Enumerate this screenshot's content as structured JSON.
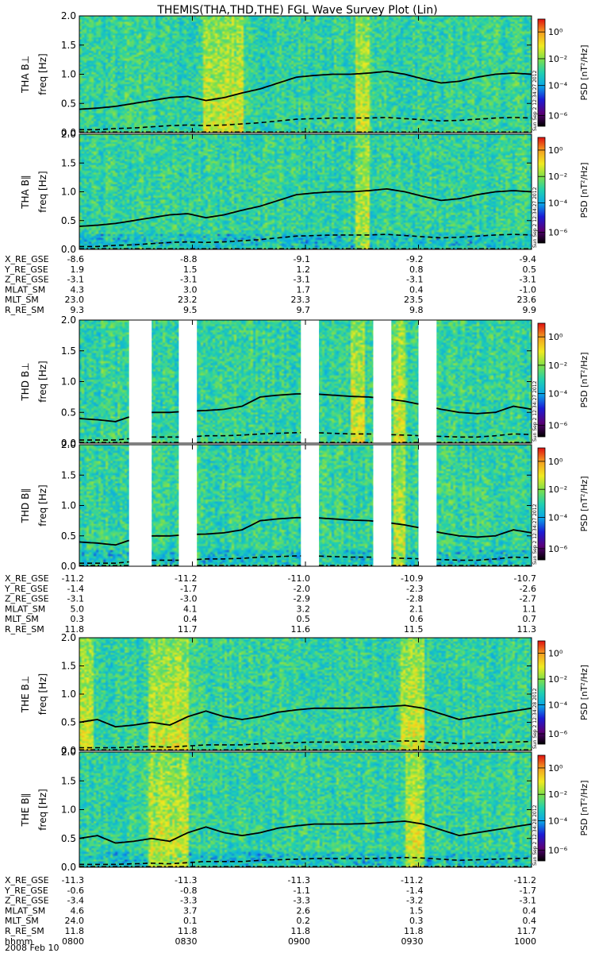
{
  "title": "THEMIS(THA,THD,THE) FGL Wave Survey Plot (Lin)",
  "colorbar": {
    "label": "PSD [nT²/Hz]",
    "ticks": [
      "10⁰",
      "10⁻²",
      "10⁻⁴",
      "10⁻⁶"
    ],
    "colors": [
      "#000000",
      "#5a007a",
      "#1b1bd6",
      "#0aa7e8",
      "#20d0b0",
      "#7de04a",
      "#f0ea20",
      "#f5a020",
      "#e01010"
    ]
  },
  "chart_data": {
    "type": "heatmap",
    "x_axis": {
      "label": "hhmm",
      "ticks": [
        "0800",
        "0830",
        "0900",
        "0930",
        "1000"
      ],
      "date": "2008 Feb 10"
    },
    "y_axis": {
      "label": "freq [Hz]",
      "range": [
        0,
        2.0
      ],
      "ticks": [
        "0.0",
        "0.5",
        "1.0",
        "1.5",
        "2.0"
      ]
    },
    "panels": [
      {
        "probe": "THA",
        "label": "THA B⊥",
        "component": "perp",
        "stamp": "Sun Sep 2 12:34:27 2012",
        "fce_line": [
          0.4,
          0.42,
          0.45,
          0.5,
          0.55,
          0.6,
          0.62,
          0.55,
          0.6,
          0.68,
          0.75,
          0.85,
          0.95,
          0.98,
          1.0,
          1.0,
          1.02,
          1.05,
          1.0,
          0.92,
          0.85,
          0.88,
          0.95,
          1.0,
          1.02,
          1.0
        ],
        "half_line": [
          0.05,
          0.05,
          0.07,
          0.08,
          0.1,
          0.12,
          0.13,
          0.12,
          0.13,
          0.15,
          0.17,
          0.2,
          0.23,
          0.24,
          0.25,
          0.25,
          0.25,
          0.26,
          0.24,
          0.22,
          0.2,
          0.21,
          0.23,
          0.25,
          0.26,
          0.25
        ],
        "dotdash_line": [
          0.01,
          0.01,
          0.01,
          0.01,
          0.01,
          0.01,
          0.01,
          0.01,
          0.01,
          0.01,
          0.01,
          0.01,
          0.01,
          0.01,
          0.01,
          0.01,
          0.01,
          0.01,
          0.01,
          0.01,
          0.01,
          0.01,
          0.01,
          0.01,
          0.01,
          0.01
        ],
        "gaps": [],
        "bright": [
          [
            0.27,
            0.36
          ],
          [
            0.61,
            0.64
          ]
        ]
      },
      {
        "probe": "THA",
        "label": "THA B∥",
        "component": "par",
        "stamp": "Sun Sep 2 12:34:27 2012",
        "fce_line": [
          0.4,
          0.42,
          0.45,
          0.5,
          0.55,
          0.6,
          0.62,
          0.55,
          0.6,
          0.68,
          0.75,
          0.85,
          0.95,
          0.98,
          1.0,
          1.0,
          1.02,
          1.05,
          1.0,
          0.92,
          0.85,
          0.88,
          0.95,
          1.0,
          1.02,
          1.0
        ],
        "half_line": [
          0.05,
          0.05,
          0.07,
          0.08,
          0.1,
          0.12,
          0.13,
          0.12,
          0.13,
          0.15,
          0.17,
          0.2,
          0.23,
          0.24,
          0.25,
          0.25,
          0.25,
          0.26,
          0.24,
          0.22,
          0.2,
          0.21,
          0.23,
          0.25,
          0.26,
          0.25
        ],
        "dotdash_line": [
          0.01,
          0.01,
          0.01,
          0.01,
          0.01,
          0.01,
          0.01,
          0.01,
          0.01,
          0.01,
          0.01,
          0.01,
          0.01,
          0.01,
          0.01,
          0.01,
          0.01,
          0.01,
          0.01,
          0.01,
          0.01,
          0.01,
          0.01,
          0.01,
          0.01,
          0.01
        ],
        "gaps": [],
        "bright": [
          [
            0.61,
            0.64
          ]
        ]
      },
      {
        "probe": "THD",
        "label": "THD B⊥",
        "component": "perp",
        "stamp": "Sun Sep 2 12:34:27 2012",
        "fce_line": [
          0.4,
          0.38,
          0.35,
          0.45,
          0.5,
          0.5,
          0.52,
          0.53,
          0.55,
          0.6,
          0.75,
          0.78,
          0.8,
          0.8,
          0.78,
          0.76,
          0.75,
          0.72,
          0.68,
          0.62,
          0.55,
          0.5,
          0.48,
          0.5,
          0.6,
          0.55
        ],
        "half_line": [
          0.05,
          0.05,
          0.05,
          0.08,
          0.1,
          0.1,
          0.1,
          0.12,
          0.12,
          0.13,
          0.15,
          0.16,
          0.17,
          0.17,
          0.16,
          0.15,
          0.15,
          0.14,
          0.13,
          0.12,
          0.11,
          0.1,
          0.1,
          0.12,
          0.15,
          0.14
        ],
        "dotdash_line": [
          0.01,
          0.01,
          0.01,
          0.01,
          0.01,
          0.01,
          0.01,
          0.01,
          0.01,
          0.01,
          0.01,
          0.01,
          0.01,
          0.01,
          0.01,
          0.01,
          0.01,
          0.01,
          0.01,
          0.01,
          0.01,
          0.01,
          0.01,
          0.01,
          0.01,
          0.01
        ],
        "gaps": [
          [
            0.11,
            0.16
          ],
          [
            0.22,
            0.26
          ],
          [
            0.49,
            0.53
          ],
          [
            0.65,
            0.69
          ],
          [
            0.75,
            0.79
          ]
        ],
        "bright": [
          [
            0.6,
            0.63
          ],
          [
            0.69,
            0.72
          ]
        ]
      },
      {
        "probe": "THD",
        "label": "THD B∥",
        "component": "par",
        "stamp": "Sun Sep 2 12:34:27 2012",
        "fce_line": [
          0.4,
          0.38,
          0.35,
          0.45,
          0.5,
          0.5,
          0.52,
          0.53,
          0.55,
          0.6,
          0.75,
          0.78,
          0.8,
          0.8,
          0.78,
          0.76,
          0.75,
          0.72,
          0.68,
          0.62,
          0.55,
          0.5,
          0.48,
          0.5,
          0.6,
          0.55
        ],
        "half_line": [
          0.05,
          0.05,
          0.05,
          0.08,
          0.1,
          0.1,
          0.1,
          0.12,
          0.12,
          0.13,
          0.15,
          0.16,
          0.17,
          0.17,
          0.16,
          0.15,
          0.15,
          0.14,
          0.13,
          0.12,
          0.11,
          0.1,
          0.1,
          0.12,
          0.15,
          0.14
        ],
        "dotdash_line": [
          0.01,
          0.01,
          0.01,
          0.01,
          0.01,
          0.01,
          0.01,
          0.01,
          0.01,
          0.01,
          0.01,
          0.01,
          0.01,
          0.01,
          0.01,
          0.01,
          0.01,
          0.01,
          0.01,
          0.01,
          0.01,
          0.01,
          0.01,
          0.01,
          0.01,
          0.01
        ],
        "gaps": [
          [
            0.11,
            0.16
          ],
          [
            0.22,
            0.26
          ],
          [
            0.49,
            0.53
          ],
          [
            0.65,
            0.69
          ],
          [
            0.75,
            0.79
          ]
        ],
        "bright": [
          [
            0.69,
            0.72
          ]
        ]
      },
      {
        "probe": "THE",
        "label": "THE B⊥",
        "component": "perp",
        "stamp": "Sun Sep 2 12:34:28 2012",
        "fce_line": [
          0.5,
          0.55,
          0.42,
          0.45,
          0.5,
          0.45,
          0.6,
          0.7,
          0.6,
          0.55,
          0.6,
          0.68,
          0.72,
          0.75,
          0.75,
          0.75,
          0.76,
          0.78,
          0.8,
          0.75,
          0.65,
          0.55,
          0.6,
          0.65,
          0.7,
          0.75
        ],
        "half_line": [
          0.05,
          0.05,
          0.05,
          0.06,
          0.07,
          0.06,
          0.08,
          0.1,
          0.1,
          0.1,
          0.12,
          0.13,
          0.14,
          0.15,
          0.15,
          0.15,
          0.15,
          0.16,
          0.17,
          0.16,
          0.14,
          0.12,
          0.13,
          0.14,
          0.15,
          0.16
        ],
        "dotdash_line": [
          0.01,
          0.01,
          0.01,
          0.01,
          0.01,
          0.01,
          0.01,
          0.01,
          0.01,
          0.01,
          0.01,
          0.01,
          0.01,
          0.01,
          0.01,
          0.01,
          0.01,
          0.01,
          0.01,
          0.01,
          0.01,
          0.01,
          0.01,
          0.01,
          0.01,
          0.01
        ],
        "gaps": [],
        "bright": [
          [
            0.0,
            0.03
          ],
          [
            0.15,
            0.24
          ],
          [
            0.71,
            0.76
          ]
        ]
      },
      {
        "probe": "THE",
        "label": "THE B∥",
        "component": "par",
        "stamp": "Sun Sep 2 12:34:28 2012",
        "fce_line": [
          0.5,
          0.55,
          0.42,
          0.45,
          0.5,
          0.45,
          0.6,
          0.7,
          0.6,
          0.55,
          0.6,
          0.68,
          0.72,
          0.75,
          0.75,
          0.75,
          0.76,
          0.78,
          0.8,
          0.75,
          0.65,
          0.55,
          0.6,
          0.65,
          0.7,
          0.75
        ],
        "half_line": [
          0.05,
          0.05,
          0.05,
          0.06,
          0.07,
          0.06,
          0.08,
          0.1,
          0.1,
          0.1,
          0.12,
          0.13,
          0.14,
          0.15,
          0.15,
          0.15,
          0.15,
          0.16,
          0.17,
          0.16,
          0.14,
          0.12,
          0.13,
          0.14,
          0.15,
          0.16
        ],
        "dotdash_line": [
          0.01,
          0.01,
          0.01,
          0.01,
          0.01,
          0.01,
          0.01,
          0.01,
          0.01,
          0.01,
          0.01,
          0.01,
          0.01,
          0.01,
          0.01,
          0.01,
          0.01,
          0.01,
          0.01,
          0.01,
          0.01,
          0.01,
          0.01,
          0.01,
          0.01,
          0.01
        ],
        "gaps": [],
        "bright": [
          [
            0.15,
            0.24
          ],
          [
            0.72,
            0.76
          ]
        ]
      }
    ],
    "ephemeris_blocks": [
      {
        "rows": [
          {
            "name": "X_RE_GSE",
            "values": [
              "-8.6",
              "-8.8",
              "-9.1",
              "-9.2",
              "-9.4"
            ]
          },
          {
            "name": "Y_RE_GSE",
            "values": [
              "1.9",
              "1.5",
              "1.2",
              "0.8",
              "0.5"
            ]
          },
          {
            "name": "Z_RE_GSE",
            "values": [
              "-3.1",
              "-3.1",
              "-3.1",
              "-3.1",
              "-3.1"
            ]
          },
          {
            "name": "MLAT_SM",
            "values": [
              "4.3",
              "3.0",
              "1.7",
              "0.4",
              "-1.0"
            ]
          },
          {
            "name": "MLT_SM",
            "values": [
              "23.0",
              "23.2",
              "23.3",
              "23.5",
              "23.6"
            ]
          },
          {
            "name": "R_RE_SM",
            "values": [
              "9.3",
              "9.5",
              "9.7",
              "9.8",
              "9.9"
            ]
          }
        ]
      },
      {
        "rows": [
          {
            "name": "X_RE_GSE",
            "values": [
              "-11.2",
              "-11.2",
              "-11.0",
              "-10.9",
              "-10.7"
            ]
          },
          {
            "name": "Y_RE_GSE",
            "values": [
              "-1.4",
              "-1.7",
              "-2.0",
              "-2.3",
              "-2.6"
            ]
          },
          {
            "name": "Z_RE_GSE",
            "values": [
              "-3.1",
              "-3.0",
              "-2.9",
              "-2.8",
              "-2.7"
            ]
          },
          {
            "name": "MLAT_SM",
            "values": [
              "5.0",
              "4.1",
              "3.2",
              "2.1",
              "1.1"
            ]
          },
          {
            "name": "MLT_SM",
            "values": [
              "0.3",
              "0.4",
              "0.5",
              "0.6",
              "0.7"
            ]
          },
          {
            "name": "R_RE_SM",
            "values": [
              "11.8",
              "11.7",
              "11.6",
              "11.5",
              "11.3"
            ]
          }
        ]
      },
      {
        "rows": [
          {
            "name": "X_RE_GSE",
            "values": [
              "-11.3",
              "-11.3",
              "-11.3",
              "-11.2",
              "-11.2"
            ]
          },
          {
            "name": "Y_RE_GSE",
            "values": [
              "-0.6",
              "-0.8",
              "-1.1",
              "-1.4",
              "-1.7"
            ]
          },
          {
            "name": "Z_RE_GSE",
            "values": [
              "-3.4",
              "-3.3",
              "-3.3",
              "-3.2",
              "-3.1"
            ]
          },
          {
            "name": "MLAT_SM",
            "values": [
              "4.6",
              "3.7",
              "2.6",
              "1.5",
              "0.4"
            ]
          },
          {
            "name": "MLT_SM",
            "values": [
              "24.0",
              "0.1",
              "0.2",
              "0.3",
              "0.4"
            ]
          },
          {
            "name": "R_RE_SM",
            "values": [
              "11.8",
              "11.8",
              "11.8",
              "11.8",
              "11.7"
            ]
          },
          {
            "name": "hhmm",
            "values": [
              "0800",
              "0830",
              "0900",
              "0930",
              "1000"
            ]
          }
        ]
      }
    ]
  }
}
